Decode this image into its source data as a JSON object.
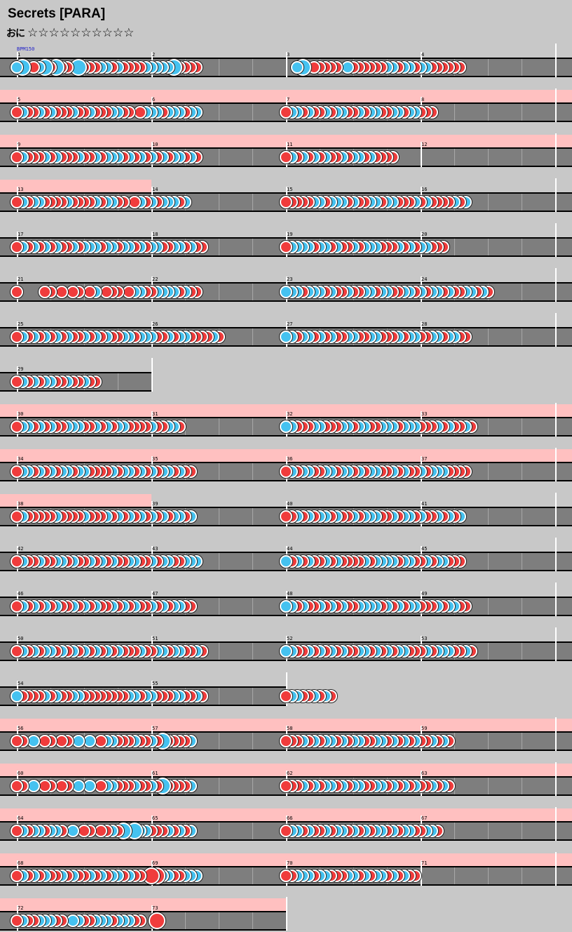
{
  "song": {
    "title": "Secrets [PARA]",
    "difficulty_label": "おに",
    "stars": "☆☆☆☆☆☆☆☆☆☆",
    "star_count": 10,
    "bpm_label": "BPM150"
  },
  "colors": {
    "background": "#c8c8c8",
    "lane": "#7e7e7e",
    "gogo_band": "#ffc0c0",
    "don": "#f03c3c",
    "ka": "#45c2f0",
    "barline": "#ffffff"
  },
  "rows": [
    {
      "m": [
        "1",
        "2",
        "3",
        "4"
      ],
      "gogo": [
        0,
        0,
        0,
        0
      ],
      "notes": [
        "bB.dbBdBdd.BdddbbdbddddbbbbbBdddd",
        "..bB.ddddd.bddddddbbdbbdbbdddddd"
      ]
    },
    {
      "m": [
        "5",
        "6",
        "7",
        "8"
      ],
      "gogo": [
        1,
        1,
        1,
        1
      ],
      "notes": [
        "dbddbdbdddbddbdddbbdd.dbbbdbbbdbb",
        "dbbdbddbdbbddbdbbddbbdbbddd"
      ]
    },
    {
      "m": [
        "9",
        "10",
        "11",
        "12"
      ],
      "gogo": [
        1,
        1,
        1,
        1
      ],
      "notes": [
        "dbdddbdbdddbddbdbbbdbdbdbdbdbbdbd",
        "dbdbdbdbddbdbbdbdddd"
      ]
    },
    {
      "m": [
        "13",
        "14",
        "15",
        "16"
      ],
      "gogo": [
        1,
        0,
        0,
        0
      ],
      "notes": [
        "dbdbbddddbddddbdbbdd.dbdbdbbbdb",
        "dddddbbdbbbdbddbbdbbdddbdbddddbdb"
      ]
    },
    {
      "m": [
        "17",
        "18",
        "19",
        "20"
      ],
      "gogo": [
        0,
        0,
        0,
        0
      ],
      "notes": [
        "dbdbdbdbddbdbbbdbbdbbdbdbbddbbdbdd",
        "dbbbbdbbdbddbdbbbdddbdbdbbddd"
      ]
    },
    {
      "m": [
        "21",
        "22",
        "23",
        "24"
      ],
      "gogo": [
        0,
        0,
        0,
        0
      ],
      "notes": [
        "d....dd.d.dd.db.ddd.dbbddbbbbdbdd",
        "bbbdbbbdbddbddbbdbbddbbdbdbbdbddbbdbd"
      ]
    },
    {
      "m": [
        "25",
        "26",
        "27",
        "28"
      ],
      "gogo": [
        0,
        0,
        0,
        0
      ],
      "notes": [
        "dbdbdbdbdbddbdbdbddbbdbbbddbdbbddddbd",
        "bbdbbdbdbddbbddbbdddbdbbddbbdbbdd"
      ]
    },
    {
      "m": [
        "29"
      ],
      "gogo": [
        0
      ],
      "notes": [
        "dbdbdbbddbddbdd"
      ]
    },
    {
      "m": [
        "30",
        "31",
        "32",
        "33"
      ],
      "gogo": [
        1,
        1,
        1,
        1
      ],
      "notes": [
        "dbbdbdbddbbbddbdbdbbddddbddbbd",
        "bbdddbbdddbbdbbddbbbdbbbdddbdbddbd"
      ]
    },
    {
      "m": [
        "34",
        "35",
        "36",
        "37"
      ],
      "gogo": [
        1,
        1,
        1,
        1
      ],
      "notes": [
        "dbbdbdbdbbdbbddddbdbbdbdbdbbdbdd",
        "dbdbbddbbdbbdbdbbddbdbddbdbbbdddd"
      ]
    },
    {
      "m": [
        "38",
        "39",
        "40",
        "41"
      ],
      "gogo": [
        1,
        0,
        0,
        0
      ],
      "notes": [
        "dbdddddbddddbdddbdbdbdbdbdbdbbdb",
        "ddbdbdbbdbddbdbbbddbdbbdbddbdbdb"
      ]
    },
    {
      "m": [
        "42",
        "43",
        "44",
        "45"
      ],
      "gogo": [
        0,
        0,
        0,
        0
      ],
      "notes": [
        "dbddbddbbdbddbdbdbddbbddbdbbddbbb",
        "bdbdbddbdbddddbdbbbbdbbddbdbbddd"
      ]
    },
    {
      "m": [
        "46",
        "47",
        "48",
        "49"
      ],
      "gogo": [
        0,
        0,
        0,
        0
      ],
      "notes": [
        "dbdbdbdbddbdbdbddbdbdbddbdbdbbdd",
        "bbdbddbdbdbddbbbbdbdbdbbdddbdbbdd"
      ]
    },
    {
      "m": [
        "50",
        "51",
        "52",
        "53"
      ],
      "gogo": [
        0,
        0,
        0,
        0
      ],
      "notes": [
        "dbdbdbbdbdbdbdbdbdbdddbddbbdbbddbd",
        "bbddbdbdbdbddbbdbdbdbbdddbdbbbddbd"
      ]
    },
    {
      "m": [
        "54",
        "55"
      ],
      "gogo": [
        0,
        0
      ],
      "notes": [
        "bddddbdbddbbddddddddbbdbbdddbbddbd",
        "dbbddbdbd"
      ]
    },
    {
      "m": [
        "56",
        "57",
        "58",
        "59"
      ],
      "gogo": [
        1,
        1,
        1,
        1
      ],
      "notes": [
        "dd.b.dd.dd.b.b.dbbdddbddbdBddddb",
        "dddbdbdbbdbdbbddbbdbdbdbddbdbd"
      ]
    },
    {
      "m": [
        "60",
        "61",
        "62",
        "63"
      ],
      "gogo": [
        1,
        1,
        1,
        1
      ],
      "notes": [
        "dd.b.dd.dd.b.b.dbbdddbddbdBddddb",
        "dddbdbdbbdbdbbddbbdbdbdbddbdbd"
      ]
    },
    {
      "m": [
        "64",
        "65",
        "66",
        "67"
      ],
      "gogo": [
        1,
        1,
        1,
        1
      ],
      "notes": [
        "dbdbbdbbd.b.dd.ddbdB.Bbbdddbdbdb",
        "dbbdbddbdbbdbdbdbbdbdbbddbbd"
      ]
    },
    {
      "m": [
        "68",
        "69",
        "70",
        "71"
      ],
      "gogo": [
        1,
        1,
        1,
        1
      ],
      "notes": [
        "dbdbdbddbdbddbdbdbbdbdd.DDbbddbbb",
        "ddbbbdbbdddbbdbdbbdbdbdd"
      ]
    },
    {
      "m": [
        "72",
        "73"
      ],
      "gogo": [
        1,
        1
      ],
      "notes": [
        "dbddbbbdd.bbddbbbdbbbdd..D"
      ]
    }
  ]
}
